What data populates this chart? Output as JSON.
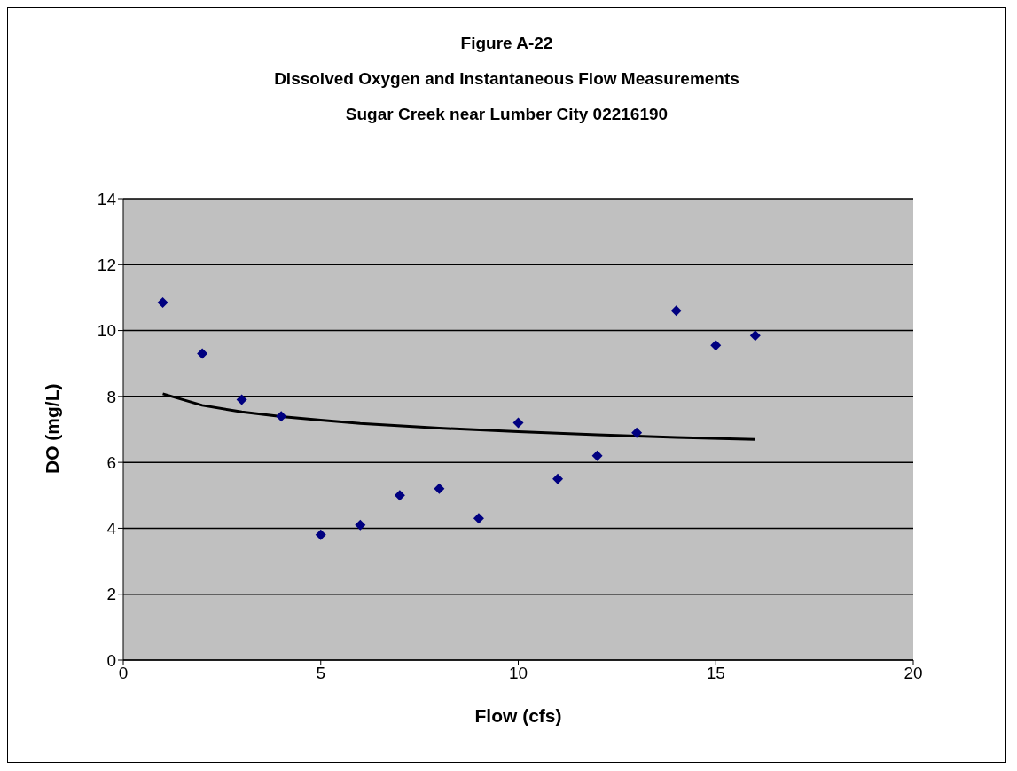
{
  "chart_data": {
    "type": "scatter",
    "title": "Figure A-22\nDissolved Oxygen and Instantaneous Flow Measurements\nSugar Creek near Lumber City 02216190",
    "xlabel": "Flow (cfs)",
    "ylabel": "DO (mg/L)",
    "x": [
      1,
      2,
      3,
      4,
      5,
      6,
      7,
      8,
      9,
      10,
      11,
      12,
      13,
      14,
      15,
      16
    ],
    "series": [
      {
        "color": "#000080",
        "marker": "diamond",
        "values": [
          10.85,
          9.3,
          7.9,
          7.4,
          3.8,
          4.1,
          5.0,
          5.2,
          4.3,
          7.2,
          5.5,
          6.2,
          6.9,
          10.6,
          9.55,
          9.85
        ]
      },
      {
        "type": "line",
        "marker": "none",
        "color": "#000000",
        "x": [
          1,
          2,
          3,
          4,
          5,
          6,
          8,
          10,
          12,
          14,
          16
        ],
        "values": [
          8.08,
          7.73,
          7.53,
          7.39,
          7.28,
          7.18,
          7.04,
          6.93,
          6.84,
          6.76,
          6.7
        ]
      }
    ],
    "xlim": [
      0,
      20
    ],
    "xticks": [
      0,
      5,
      10,
      15,
      20
    ],
    "ylim": [
      0,
      14
    ],
    "yticks": [
      0,
      2,
      4,
      6,
      8,
      10,
      12,
      14
    ],
    "grid": "y",
    "legend": false
  }
}
